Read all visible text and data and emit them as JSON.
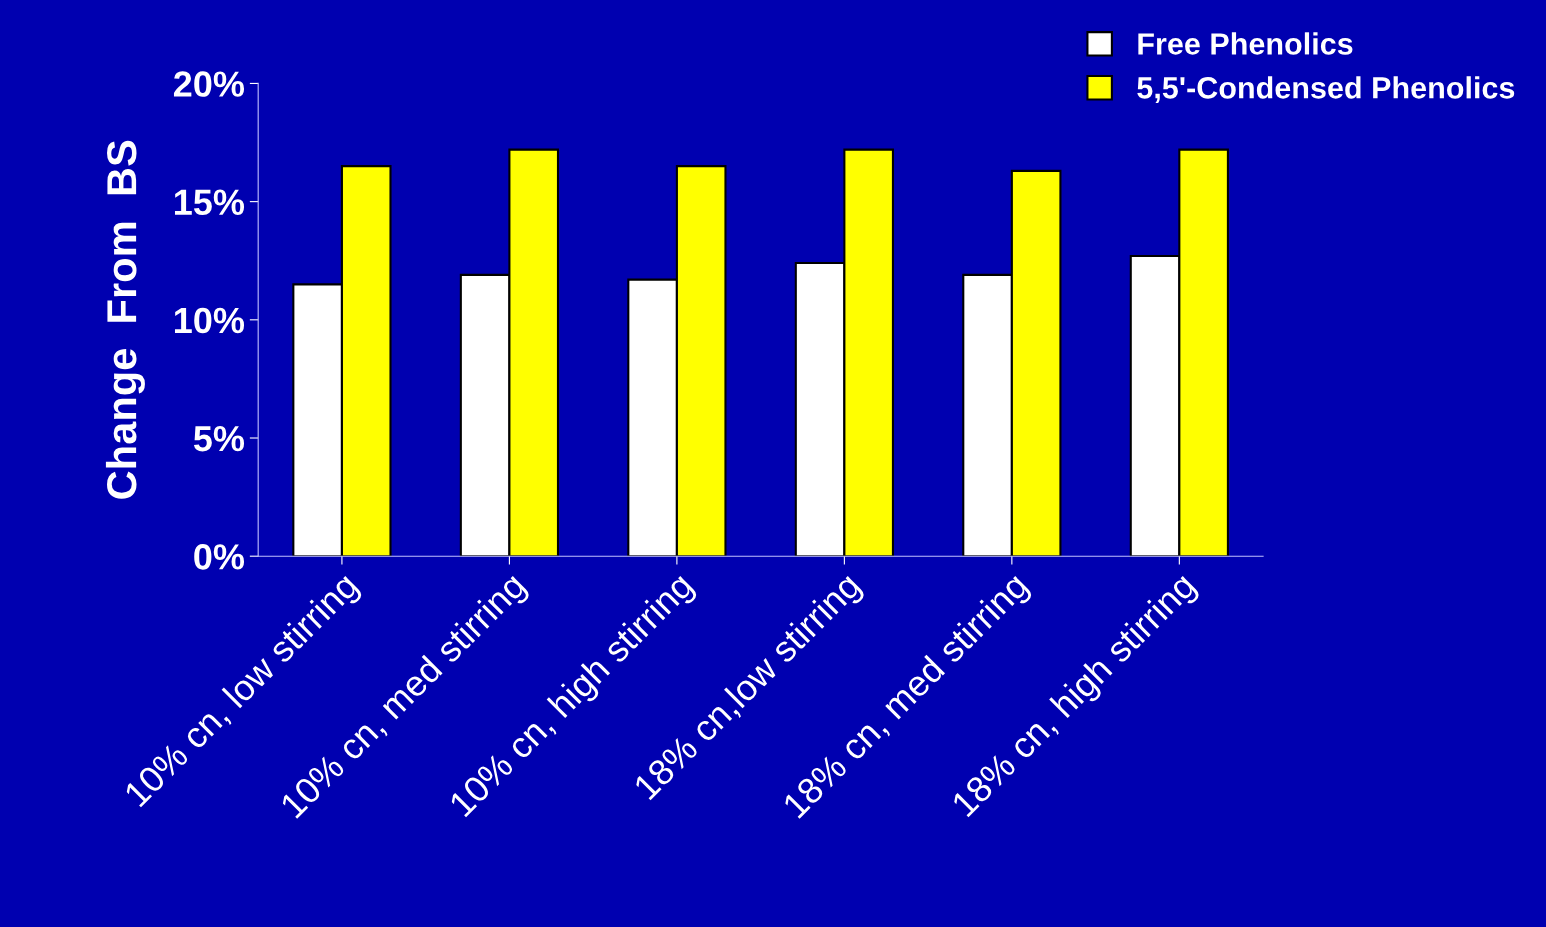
{
  "chart_data": {
    "type": "bar",
    "ylabel": "Change  From  BS",
    "categories": [
      "10% cn, low stirring",
      "10% cn, med stirring",
      "10% cn, high stirring",
      "18% cn,low stirring",
      "18% cn, med stirring",
      "18% cn, high stirring"
    ],
    "series": [
      {
        "name": "Free Phenolics",
        "color": "#ffffff",
        "values": [
          11.5,
          11.9,
          11.7,
          12.4,
          11.9,
          12.7
        ]
      },
      {
        "name": "5,5'-Condensed Phenolics",
        "color": "#ffff00",
        "values": [
          16.5,
          17.2,
          16.5,
          17.2,
          16.3,
          17.2
        ]
      }
    ],
    "ylim": [
      0,
      20
    ],
    "yticks": [
      {
        "value": 0,
        "label": "0%"
      },
      {
        "value": 5,
        "label": "5%"
      },
      {
        "value": 10,
        "label": "10%"
      },
      {
        "value": 15,
        "label": "15%"
      },
      {
        "value": 20,
        "label": "20%"
      }
    ],
    "grid": false,
    "legend": "top right"
  }
}
